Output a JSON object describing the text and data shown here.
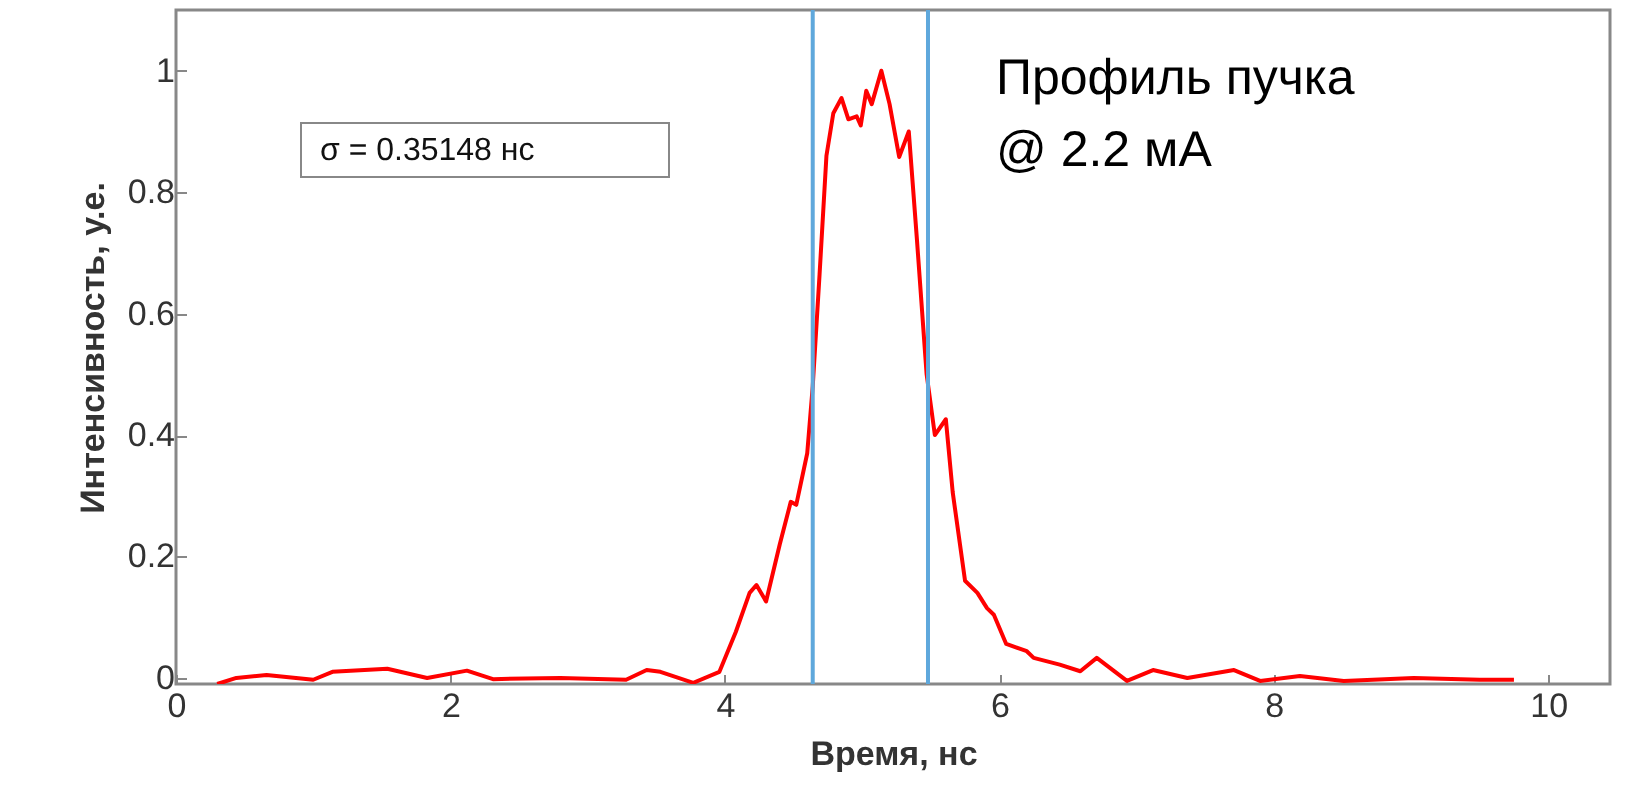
{
  "chart_data": {
    "type": "line",
    "xlabel": "Время, нс",
    "ylabel": "Интенсивность, у.е.",
    "annotations": [
      "σ = 0.35148  нс",
      "Профиль пучка\n@ 2.2 мА"
    ],
    "xlim": [
      0,
      10.45
    ],
    "ylim": [
      -0.01,
      1.1
    ],
    "xticks": [
      0,
      2,
      4,
      6,
      8,
      10
    ],
    "yticks": [
      0,
      0.2,
      0.4,
      0.6,
      0.8,
      1
    ],
    "grid": false,
    "ref_lines": [
      {
        "axis": "x",
        "value": 4.64,
        "color": "#5fa8dc"
      },
      {
        "axis": "x",
        "value": 5.48,
        "color": "#5fa8dc"
      }
    ],
    "series": [
      {
        "color": "#ff0000",
        "x": [
          0.3,
          0.44,
          0.66,
          1.0,
          1.14,
          1.54,
          1.83,
          2.12,
          2.31,
          2.8,
          3.28,
          3.43,
          3.53,
          3.77,
          3.96,
          4.08,
          4.18,
          4.23,
          4.3,
          4.4,
          4.48,
          4.52,
          4.6,
          4.64,
          4.69,
          4.74,
          4.79,
          4.85,
          4.9,
          4.96,
          4.99,
          5.03,
          5.07,
          5.14,
          5.2,
          5.27,
          5.34,
          5.4,
          5.47,
          5.53,
          5.61,
          5.66,
          5.75,
          5.84,
          5.91,
          5.96,
          6.05,
          6.2,
          6.25,
          6.44,
          6.59,
          6.71,
          6.93,
          7.12,
          7.37,
          7.71,
          7.9,
          8.19,
          8.51,
          9.02,
          9.5,
          9.75
        ],
        "values": [
          -0.01,
          0,
          0.005,
          -0.003,
          0.01,
          0.015,
          0,
          0.012,
          -0.002,
          0,
          -0.003,
          0.013,
          0.01,
          -0.008,
          0.01,
          0.076,
          0.14,
          0.153,
          0.126,
          0.22,
          0.29,
          0.285,
          0.37,
          0.48,
          0.665,
          0.86,
          0.93,
          0.955,
          0.92,
          0.925,
          0.91,
          0.967,
          0.945,
          1.0,
          0.945,
          0.858,
          0.9,
          0.72,
          0.5,
          0.4,
          0.426,
          0.306,
          0.16,
          0.14,
          0.115,
          0.104,
          0.056,
          0.044,
          0.033,
          0.022,
          0.011,
          0.033,
          -0.005,
          0.013,
          0,
          0.013,
          -0.005,
          0.003,
          -0.005,
          0,
          -0.003,
          -0.003
        ]
      }
    ]
  }
}
